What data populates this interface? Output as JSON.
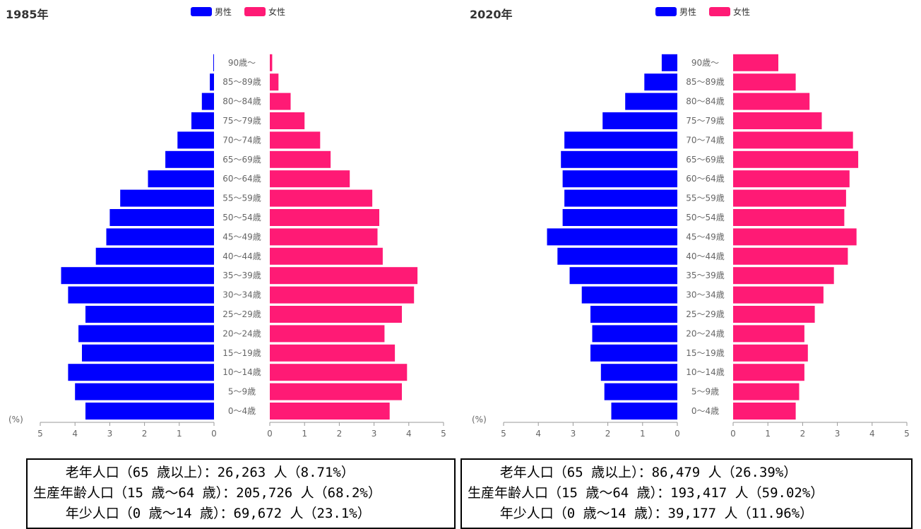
{
  "legend": {
    "male": "男性",
    "female": "女性"
  },
  "colors": {
    "male": "#0000ff",
    "female": "#ff1a75"
  },
  "unit_label": "(%)",
  "chart_data": [
    {
      "type": "bar",
      "title": "1985年",
      "orientation": "horizontal-pyramid",
      "categories": [
        "0〜4歳",
        "5〜9歳",
        "10〜14歳",
        "15〜19歳",
        "20〜24歳",
        "25〜29歳",
        "30〜34歳",
        "35〜39歳",
        "40〜44歳",
        "45〜49歳",
        "50〜54歳",
        "55〜59歳",
        "60〜64歳",
        "65〜69歳",
        "70〜74歳",
        "75〜79歳",
        "80〜84歳",
        "85〜89歳",
        "90歳〜"
      ],
      "series": [
        {
          "name": "男性",
          "values": [
            3.7,
            4.0,
            4.2,
            3.8,
            3.9,
            3.7,
            4.2,
            4.4,
            3.4,
            3.1,
            3.0,
            2.7,
            1.9,
            1.4,
            1.05,
            0.65,
            0.35,
            0.12,
            0.02
          ]
        },
        {
          "name": "女性",
          "values": [
            3.45,
            3.8,
            3.95,
            3.6,
            3.3,
            3.8,
            4.15,
            4.25,
            3.25,
            3.1,
            3.15,
            2.95,
            2.3,
            1.75,
            1.45,
            1.0,
            0.6,
            0.25,
            0.07
          ]
        }
      ],
      "xlim": [
        0,
        5
      ],
      "ticks": [
        "5",
        "4",
        "3",
        "2",
        "1",
        "0"
      ],
      "ticks_right": [
        "0",
        "1",
        "2",
        "3",
        "4",
        "5"
      ],
      "grid": false,
      "legend_position": "top-center"
    },
    {
      "type": "bar",
      "title": "2020年",
      "orientation": "horizontal-pyramid",
      "categories": [
        "0〜4歳",
        "5〜9歳",
        "10〜14歳",
        "15〜19歳",
        "20〜24歳",
        "25〜29歳",
        "30〜34歳",
        "35〜39歳",
        "40〜44歳",
        "45〜49歳",
        "50〜54歳",
        "55〜59歳",
        "60〜64歳",
        "65〜69歳",
        "70〜74歳",
        "75〜79歳",
        "80〜84歳",
        "85〜89歳",
        "90歳〜"
      ],
      "series": [
        {
          "name": "男性",
          "values": [
            1.9,
            2.1,
            2.2,
            2.5,
            2.45,
            2.5,
            2.75,
            3.1,
            3.45,
            3.75,
            3.3,
            3.25,
            3.3,
            3.35,
            3.25,
            2.15,
            1.5,
            0.95,
            0.45
          ]
        },
        {
          "name": "女性",
          "values": [
            1.8,
            1.9,
            2.05,
            2.15,
            2.05,
            2.35,
            2.6,
            2.9,
            3.3,
            3.55,
            3.2,
            3.25,
            3.35,
            3.6,
            3.45,
            2.55,
            2.2,
            1.8,
            1.3
          ]
        }
      ],
      "xlim": [
        0,
        5
      ],
      "ticks": [
        "5",
        "4",
        "3",
        "2",
        "1",
        "0"
      ],
      "ticks_right": [
        "0",
        "1",
        "2",
        "3",
        "4",
        "5"
      ],
      "grid": false,
      "legend_position": "top-center"
    }
  ],
  "summary_boxes": [
    {
      "lines": [
        "    老年人口（65 歳以上）：26,263 人（8.71%）",
        "生産年齢人口（15 歳〜64 歳）：205,726 人（68.2%）",
        "    年少人口（0 歳〜14 歳）：69,672 人（23.1%）"
      ]
    },
    {
      "lines": [
        "    老年人口（65 歳以上）：86,479 人（26.39%）",
        "生産年齢人口（15 歳〜64 歳）：193,417 人（59.02%）",
        "    年少人口（0 歳〜14 歳）：39,177 人（11.96%）"
      ]
    }
  ]
}
